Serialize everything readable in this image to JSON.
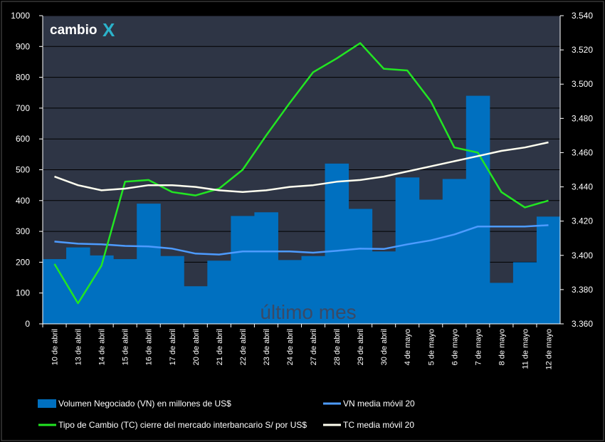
{
  "logo": {
    "text": "cambio",
    "mark": "X"
  },
  "chart_data": {
    "type": "bar",
    "watermark": "último mes",
    "categories": [
      "10 de abril",
      "13 de abril",
      "14 de abril",
      "15 de abril",
      "16 de abril",
      "17 de abril",
      "20 de abril",
      "21 de abril",
      "22 de abril",
      "23 de abril",
      "24 de abril",
      "27 de abril",
      "28 de abril",
      "29 de abril",
      "30 de abril",
      "4 de mayo",
      "5 de mayo",
      "6 de mayo",
      "7 de mayo",
      "8 de mayo",
      "11 de mayo",
      "12 de mayo"
    ],
    "y_left": {
      "min": 0,
      "max": 1000,
      "ticks": [
        "0",
        "100",
        "200",
        "300",
        "400",
        "500",
        "600",
        "700",
        "800",
        "900",
        "1000"
      ]
    },
    "y_right": {
      "min": 3.36,
      "max": 3.54,
      "ticks": [
        "3.360",
        "3.380",
        "3.400",
        "3.420",
        "3.440",
        "3.460",
        "3.480",
        "3.500",
        "3.520",
        "3.540"
      ]
    },
    "series": [
      {
        "name": "Volumen Negociado (VN) en millones de US$",
        "type": "bar",
        "axis": "left",
        "color": "#0070C0",
        "values": [
          210,
          248,
          222,
          210,
          390,
          220,
          122,
          205,
          350,
          362,
          207,
          220,
          520,
          373,
          235,
          475,
          403,
          470,
          740,
          133,
          200,
          348
        ]
      },
      {
        "name": "VN media móvil 20",
        "type": "line",
        "axis": "left",
        "color": "#4D9BFF",
        "values": [
          267,
          260,
          258,
          253,
          251,
          244,
          228,
          225,
          235,
          235,
          235,
          231,
          237,
          244,
          243,
          258,
          271,
          290,
          316,
          316,
          316,
          320
        ]
      },
      {
        "name": "Tipo de Cambio (TC) cierre del mercado interbancario S/ por US$",
        "type": "line",
        "axis": "right",
        "color": "#22E622",
        "values": [
          3.395,
          3.372,
          3.394,
          3.443,
          3.444,
          3.437,
          3.435,
          3.439,
          3.45,
          3.47,
          3.489,
          3.507,
          3.515,
          3.524,
          3.509,
          3.508,
          3.49,
          3.463,
          3.46,
          3.437,
          3.428,
          3.432
        ]
      },
      {
        "name": "TC media móvil 20",
        "type": "line",
        "axis": "right",
        "color": "#FFFFF0",
        "values": [
          3.446,
          3.441,
          3.438,
          3.439,
          3.441,
          3.441,
          3.44,
          3.438,
          3.437,
          3.438,
          3.44,
          3.441,
          3.443,
          3.444,
          3.446,
          3.449,
          3.452,
          3.455,
          3.458,
          3.461,
          3.463,
          3.466
        ]
      }
    ],
    "legend_position": "bottom"
  }
}
